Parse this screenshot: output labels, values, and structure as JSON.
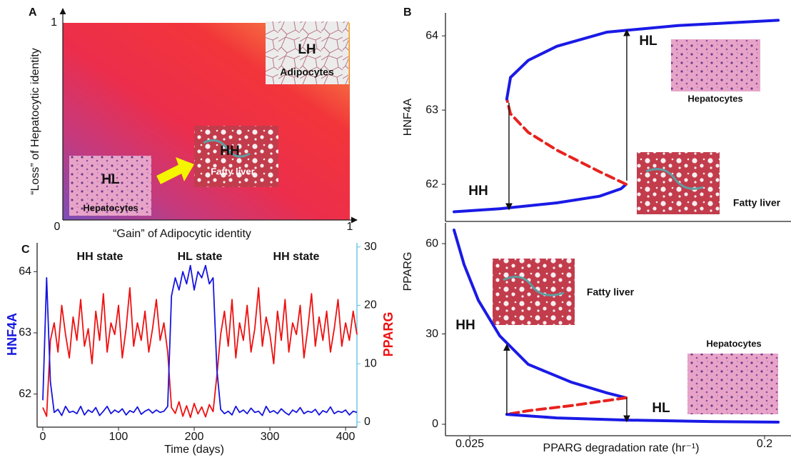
{
  "chart_data": [
    {
      "type": "schematic-map",
      "panel": "A",
      "xlabel": "“Gain” of Adipocytic identity",
      "ylabel": "“Loss” of Hepatocytic identity",
      "xlim": [
        0,
        1
      ],
      "ylim": [
        0,
        1
      ],
      "xticks": [
        0,
        1
      ],
      "yticks": [
        1
      ],
      "regions": [
        {
          "code": "HL",
          "name": "Hepatocytes"
        },
        {
          "code": "HH",
          "name": "Fatty liver"
        },
        {
          "code": "LH",
          "name": "Adipocytes"
        }
      ]
    },
    {
      "type": "bifurcation",
      "panel": "B",
      "ylabel": "HNF4A",
      "xlim": [
        0.0106,
        0.2123
      ],
      "ylim": [
        61.5,
        64.31
      ],
      "yticks": [
        62,
        63,
        64
      ],
      "series": [
        {
          "color": "#1a1ae6",
          "dashed": false,
          "x": [
            0.0157,
            0.0428,
            0.0767,
            0.1021,
            0.1148,
            0.1178
          ],
          "values": [
            61.63,
            61.67,
            61.75,
            61.84,
            61.94,
            62.0
          ]
        },
        {
          "color": "#e8221e",
          "dashed": true,
          "x": [
            0.1178,
            0.1021,
            0.0767,
            0.0597,
            0.0492,
            0.047
          ],
          "values": [
            62.0,
            62.17,
            62.46,
            62.7,
            62.95,
            63.15
          ]
        },
        {
          "color": "#1a1ae6",
          "dashed": false,
          "x": [
            0.047,
            0.0492,
            0.0597,
            0.0767,
            0.1064,
            0.1487,
            0.2081
          ],
          "values": [
            63.15,
            63.44,
            63.67,
            63.86,
            64.05,
            64.14,
            64.21
          ]
        }
      ],
      "transitions": [
        {
          "x": 0.0483,
          "from": 63.1,
          "to": 61.66
        },
        {
          "x": 0.1182,
          "from": 62.05,
          "to": 64.08
        }
      ],
      "annotations": [
        "HH",
        "HL"
      ],
      "images": [
        "Hepatocytes",
        "Fatty liver"
      ]
    },
    {
      "type": "bifurcation",
      "panel": "B",
      "ylabel": "PPARG",
      "xlabel": "PPARG degradation rate (hr⁻¹)",
      "xlim": [
        0.0106,
        0.2123
      ],
      "ylim": [
        -3.8,
        66.9
      ],
      "xticks": [
        0.025,
        0.2
      ],
      "yticks": [
        0,
        30,
        60
      ],
      "series": [
        {
          "color": "#1a1ae6",
          "dashed": false,
          "x": [
            0.0157,
            0.0216,
            0.0301,
            0.0428,
            0.0597,
            0.0852,
            0.1064,
            0.1178
          ],
          "values": [
            64.5,
            53.1,
            41.2,
            29.4,
            19.9,
            14.0,
            10.4,
            8.8
          ]
        },
        {
          "color": "#e8221e",
          "dashed": true,
          "x": [
            0.1178,
            0.0852,
            0.0597,
            0.047
          ],
          "values": [
            8.8,
            6.2,
            4.5,
            3.3
          ]
        },
        {
          "color": "#1a1ae6",
          "dashed": false,
          "x": [
            0.047,
            0.0767,
            0.1178,
            0.1699,
            0.2081
          ],
          "values": [
            3.3,
            2.1,
            1.4,
            0.9,
            0.7
          ]
        }
      ],
      "transitions": [
        {
          "x": 0.047,
          "from": 3.3,
          "to": 26.5
        },
        {
          "x": 0.1182,
          "from": 8.8,
          "to": 0.9
        }
      ],
      "annotations": [
        "HH",
        "HL"
      ],
      "images": [
        "Fatty liver",
        "Hepatocytes"
      ]
    },
    {
      "type": "line",
      "panel": "C",
      "xlabel": "Time (days)",
      "ylabel": "HNF4A",
      "y2label": "PPARG",
      "xlim": [
        -7.5,
        415
      ],
      "ylim": [
        61.46,
        64.47
      ],
      "y2lim": [
        -0.86,
        30.7
      ],
      "xticks": [
        0,
        100,
        200,
        300,
        400
      ],
      "yticks": [
        62,
        63,
        64
      ],
      "y2ticks": [
        0,
        10,
        20,
        30
      ],
      "x": [
        0,
        5,
        10,
        15,
        20,
        25,
        30,
        35,
        40,
        45,
        50,
        55,
        60,
        65,
        70,
        75,
        80,
        85,
        90,
        95,
        100,
        105,
        110,
        115,
        120,
        125,
        130,
        135,
        140,
        145,
        150,
        155,
        160,
        165,
        170,
        175,
        180,
        185,
        190,
        195,
        200,
        205,
        210,
        215,
        220,
        225,
        230,
        235,
        240,
        245,
        250,
        255,
        260,
        265,
        270,
        275,
        280,
        285,
        290,
        295,
        300,
        305,
        310,
        315,
        320,
        325,
        330,
        335,
        340,
        345,
        350,
        355,
        360,
        365,
        370,
        375,
        380,
        385,
        390,
        395,
        400,
        405,
        410,
        415
      ],
      "series": [
        {
          "color": "#ee1111",
          "axis": "y2",
          "values": [
            2.5,
            1,
            14,
            17,
            12,
            20,
            15,
            11,
            18,
            14,
            21,
            13,
            16,
            10,
            19,
            14,
            22,
            12,
            17,
            15,
            20,
            11,
            16,
            23,
            13,
            17,
            14,
            19,
            12,
            16,
            21,
            14,
            17,
            12,
            2.5,
            1.5,
            3.5,
            1,
            2.8,
            0.8,
            3.2,
            1.4,
            2.6,
            0.9,
            3,
            1.8,
            8,
            15,
            19,
            13,
            21,
            11,
            17,
            14,
            20,
            12,
            16,
            23,
            13,
            18,
            15,
            10,
            19,
            14,
            21,
            12,
            17,
            15,
            20,
            11,
            16,
            22,
            13,
            18,
            14,
            19,
            12,
            16,
            21,
            13,
            17,
            14,
            19,
            15
          ]
        },
        {
          "color": "#1515e0",
          "values": [
            61.9,
            63.9,
            62.2,
            61.7,
            61.75,
            61.65,
            61.8,
            61.7,
            61.72,
            61.68,
            61.8,
            61.66,
            61.74,
            61.7,
            61.78,
            61.65,
            61.72,
            61.8,
            61.68,
            61.74,
            61.7,
            61.76,
            61.66,
            61.73,
            61.7,
            61.79,
            61.67,
            61.72,
            61.75,
            61.69,
            61.74,
            61.7,
            61.72,
            61.8,
            63.6,
            63.9,
            63.7,
            64.0,
            63.8,
            64.1,
            63.7,
            64.0,
            63.9,
            64.1,
            63.8,
            63.9,
            62.4,
            61.75,
            61.68,
            61.72,
            61.66,
            61.8,
            61.7,
            61.74,
            61.68,
            61.77,
            61.7,
            61.72,
            61.65,
            61.8,
            61.7,
            61.73,
            61.68,
            61.76,
            61.7,
            61.66,
            61.74,
            61.7,
            61.78,
            61.68,
            61.72,
            61.7,
            61.75,
            61.66,
            61.73,
            61.7,
            61.79,
            61.68,
            61.72,
            61.7,
            61.74,
            61.66,
            61.72,
            61.7
          ]
        }
      ],
      "annotations": [
        "HH state",
        "HL state",
        "HH state"
      ]
    }
  ]
}
